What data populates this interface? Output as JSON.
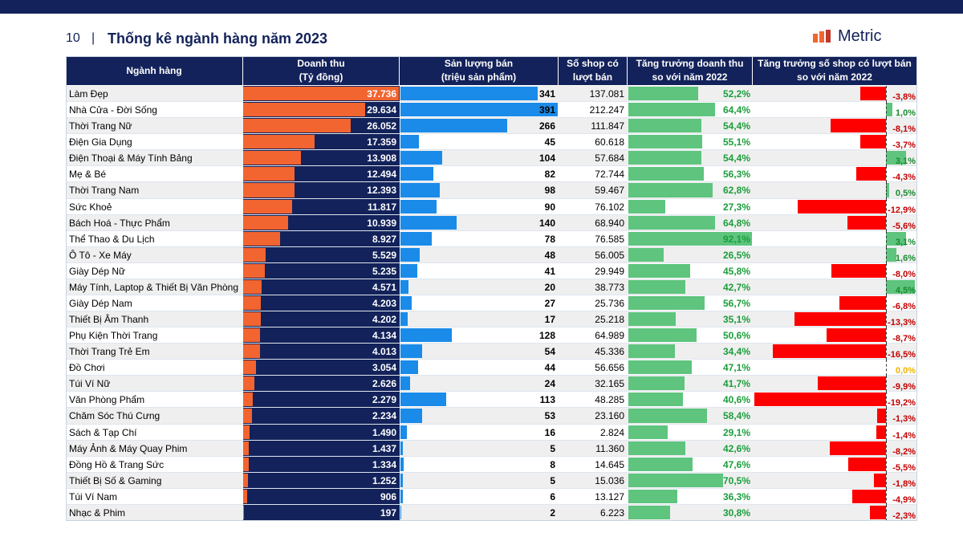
{
  "header": {
    "page_number": "10",
    "title": "Thống kê ngành hàng năm 2023",
    "logo": "Metric"
  },
  "table": {
    "columns": [
      [
        "Ngành hàng"
      ],
      [
        "Doanh thu",
        "(Tỷ đồng)"
      ],
      [
        "Sản lượng bán",
        "(triệu sản phẩm)"
      ],
      [
        "Số shop có",
        "lượt bán"
      ],
      [
        "Tăng trưởng doanh thu",
        "so với năm 2022"
      ],
      [
        "Tăng trưởng số shop có lượt bán",
        "so với năm 2022"
      ]
    ],
    "categories": [
      "Làm Đẹp",
      "Nhà Cửa - Đời Sống",
      "Thời Trang Nữ",
      "Điện Gia Dụng",
      "Điện Thoại & Máy Tính Bảng",
      "Mẹ & Bé",
      "Thời Trang Nam",
      "Sức Khoẻ",
      "Bách Hoá - Thực Phẩm",
      "Thể Thao & Du Lịch",
      "Ô Tô - Xe Máy",
      "Giày Dép Nữ",
      "Máy Tính, Laptop & Thiết Bị Văn Phòng",
      "Giày Dép Nam",
      "Thiết Bị Âm Thanh",
      "Phụ Kiện Thời Trang",
      "Thời Trang Trẻ Em",
      "Đồ Chơi",
      "Túi Ví Nữ",
      "Văn Phòng Phẩm",
      "Chăm Sóc Thú Cưng",
      "Sách & Tạp Chí",
      "Máy Ảnh & Máy Quay Phim",
      "Đồng Hồ & Trang Sức",
      "Thiết Bị Số & Gaming",
      "Túi Ví Nam",
      "Nhạc & Phim"
    ],
    "revenue": {
      "values": [
        37736,
        29634,
        26052,
        17359,
        13908,
        12494,
        12393,
        11817,
        10939,
        8927,
        5529,
        5235,
        4571,
        4203,
        4202,
        4134,
        4013,
        3054,
        2626,
        2279,
        2234,
        1490,
        1437,
        1334,
        1252,
        906,
        197
      ],
      "value_labels": [
        "37.736",
        "29.634",
        "26.052",
        "17.359",
        "13.908",
        "12.494",
        "12.393",
        "11.817",
        "10.939",
        "8.927",
        "5.529",
        "5.235",
        "4.571",
        "4.203",
        "4.202",
        "4.134",
        "4.013",
        "3.054",
        "2.626",
        "2.279",
        "2.234",
        "1.490",
        "1.437",
        "1.334",
        "1.252",
        "906",
        "197"
      ]
    },
    "sales": {
      "values": [
        341,
        391,
        266,
        45,
        104,
        82,
        98,
        90,
        140,
        78,
        48,
        41,
        20,
        27,
        17,
        128,
        54,
        44,
        24,
        113,
        53,
        16,
        5,
        8,
        5,
        6,
        2
      ]
    },
    "shops": [
      "137.081",
      "212.247",
      "111.847",
      "60.618",
      "57.684",
      "72.744",
      "59.467",
      "76.102",
      "68.940",
      "76.585",
      "56.005",
      "29.949",
      "38.773",
      "25.736",
      "25.218",
      "64.989",
      "45.336",
      "56.656",
      "32.165",
      "48.285",
      "23.160",
      "2.824",
      "11.360",
      "14.645",
      "15.036",
      "13.127",
      "6.223"
    ],
    "revenue_growth": {
      "values": [
        52.2,
        64.4,
        54.4,
        55.1,
        54.4,
        56.3,
        62.8,
        27.3,
        64.8,
        92.1,
        26.5,
        45.8,
        42.7,
        56.7,
        35.1,
        50.6,
        34.4,
        47.1,
        41.7,
        40.6,
        58.4,
        29.1,
        42.6,
        47.6,
        70.5,
        36.3,
        30.8
      ],
      "value_labels": [
        "52,2%",
        "64,4%",
        "54,4%",
        "55,1%",
        "54,4%",
        "56,3%",
        "62,8%",
        "27,3%",
        "64,8%",
        "92,1%",
        "26,5%",
        "45,8%",
        "42,7%",
        "56,7%",
        "35,1%",
        "50,6%",
        "34,4%",
        "47,1%",
        "41,7%",
        "40,6%",
        "58,4%",
        "29,1%",
        "42,6%",
        "47,6%",
        "70,5%",
        "36,3%",
        "30,8%"
      ]
    },
    "shop_growth": {
      "values": [
        -3.8,
        1.0,
        -8.1,
        -3.7,
        3.1,
        -4.3,
        0.5,
        -12.9,
        -5.6,
        3.1,
        1.6,
        -8.0,
        4.5,
        -6.8,
        -13.3,
        -8.7,
        -16.5,
        0.0,
        -9.9,
        -19.2,
        -1.3,
        -1.4,
        -8.2,
        -5.5,
        -1.8,
        -4.9,
        -2.3
      ],
      "value_labels": [
        "-3,8%",
        "1,0%",
        "-8,1%",
        "-3,7%",
        "3,1%",
        "-4,3%",
        "0,5%",
        "-12,9%",
        "-5,6%",
        "3,1%",
        "1,6%",
        "-8,0%",
        "4,5%",
        "-6,8%",
        "-13,3%",
        "-8,7%",
        "-16,5%",
        "0,0%",
        "-9,9%",
        "-19,2%",
        "-1,3%",
        "-1,4%",
        "-8,2%",
        "-5,5%",
        "-1,8%",
        "-4,9%",
        "-2,3%"
      ]
    }
  }
}
